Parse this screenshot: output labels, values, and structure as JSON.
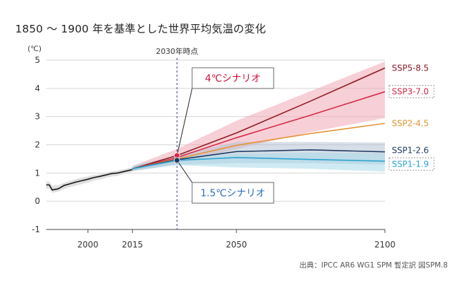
{
  "chart_data": {
    "type": "line",
    "title": "1850 〜 1900 年を基準とした世界平均気温の変化",
    "ylabel": "(℃)",
    "ylim": [
      -1,
      5
    ],
    "xlim": [
      1986,
      2100
    ],
    "yticks": [
      -1,
      0,
      1,
      2,
      3,
      4,
      5
    ],
    "xticks": [
      2000,
      2015,
      2050,
      2100
    ],
    "grid": true,
    "reference_line": {
      "x": 2030,
      "label": "2030年時点"
    },
    "historical": {
      "color": "#111111",
      "band_color": "#dcdcdc",
      "x": [
        1986,
        1987,
        1988,
        1990,
        1992,
        1994,
        1996,
        1998,
        2000,
        2002,
        2004,
        2006,
        2008,
        2010,
        2012,
        2014,
        2015
      ],
      "y": [
        0.58,
        0.58,
        0.4,
        0.44,
        0.56,
        0.62,
        0.68,
        0.73,
        0.78,
        0.84,
        0.88,
        0.93,
        0.98,
        1.0,
        1.05,
        1.1,
        1.12
      ],
      "lower": [
        0.45,
        0.45,
        0.3,
        0.34,
        0.44,
        0.5,
        0.56,
        0.61,
        0.66,
        0.73,
        0.77,
        0.83,
        0.88,
        0.9,
        0.96,
        1.02,
        1.04
      ],
      "upper": [
        0.7,
        0.7,
        0.55,
        0.56,
        0.66,
        0.72,
        0.78,
        0.84,
        0.88,
        0.93,
        0.96,
        1.01,
        1.06,
        1.09,
        1.13,
        1.18,
        1.2
      ]
    },
    "series": [
      {
        "name": "SSP5-8.5",
        "color": "#8e1a22",
        "boxed": false,
        "x": [
          2015,
          2030,
          2050,
          2075,
          2100
        ],
        "y": [
          1.15,
          1.62,
          2.42,
          3.55,
          4.72
        ]
      },
      {
        "name": "SSP3-7.0",
        "color": "#d62745",
        "boxed": true,
        "x": [
          2015,
          2030,
          2050,
          2075,
          2100
        ],
        "y": [
          1.15,
          1.55,
          2.25,
          3.05,
          3.88
        ]
      },
      {
        "name": "SSP2-4.5",
        "color": "#e39232",
        "boxed": false,
        "x": [
          2015,
          2030,
          2050,
          2075,
          2100
        ],
        "y": [
          1.15,
          1.5,
          1.98,
          2.4,
          2.76
        ]
      },
      {
        "name": "SSP1-2.6",
        "color": "#1d3a63",
        "boxed": false,
        "x": [
          2015,
          2030,
          2050,
          2075,
          2100
        ],
        "y": [
          1.15,
          1.47,
          1.76,
          1.82,
          1.75
        ]
      },
      {
        "name": "SSP1-1.9",
        "color": "#2aa2cf",
        "boxed": true,
        "x": [
          2015,
          2030,
          2050,
          2075,
          2100
        ],
        "y": [
          1.15,
          1.45,
          1.55,
          1.48,
          1.42
        ]
      }
    ],
    "bands": [
      {
        "name": "SSP3-7.0",
        "color": "#f0a7b4",
        "x": [
          2015,
          2030,
          2050,
          2075,
          2100
        ],
        "lower": [
          1.07,
          1.35,
          1.85,
          2.45,
          2.95
        ],
        "upper": [
          1.25,
          1.85,
          2.85,
          3.9,
          4.95
        ]
      },
      {
        "name": "SSP1-2.6",
        "color": "#b7c3d3",
        "x": [
          2015,
          2030,
          2050,
          2075,
          2100
        ],
        "lower": [
          1.07,
          1.3,
          1.35,
          1.35,
          1.3
        ],
        "upper": [
          1.25,
          1.62,
          2.1,
          2.1,
          2.08
        ]
      },
      {
        "name": "SSP1-1.9",
        "color": "#a8d8ea",
        "x": [
          2015,
          2030,
          2050,
          2075,
          2100
        ],
        "lower": [
          1.07,
          1.28,
          1.2,
          1.15,
          1.05
        ],
        "upper": [
          1.25,
          1.58,
          1.68,
          1.72,
          1.7
        ]
      }
    ],
    "markers": [
      {
        "x": 2030,
        "y": 1.62,
        "color": "#d62745"
      },
      {
        "x": 2030,
        "y": 1.45,
        "color": "#1d3a63"
      }
    ],
    "callouts": [
      {
        "text": "4℃シナリオ",
        "color": "#d0103a",
        "target_x": 2030,
        "target_y": 1.62
      },
      {
        "text": "1.5℃シナリオ",
        "color": "#2f6fba",
        "target_x": 2030,
        "target_y": 1.45
      }
    ]
  },
  "source": "出典：IPCC AR6 WG1 SPM 暫定訳 図SPM.8"
}
